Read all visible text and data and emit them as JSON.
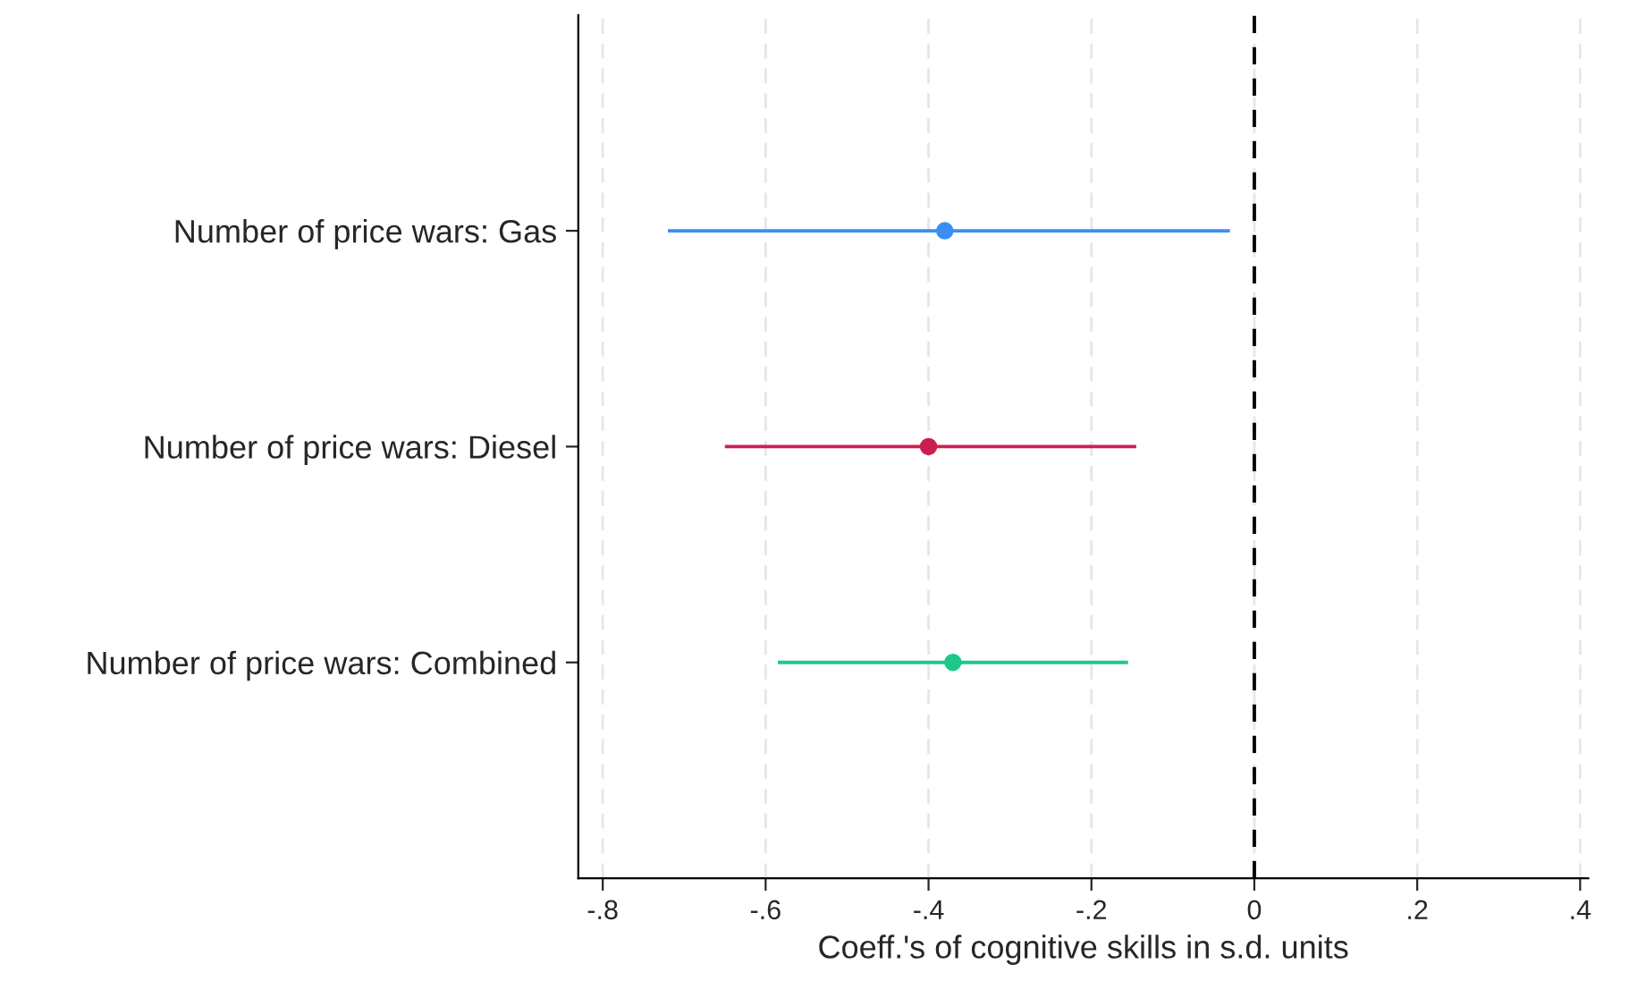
{
  "chart_data": {
    "type": "scatter",
    "orientation": "horizontal",
    "xlabel": "Coeff.'s of cognitive skills in s.d. units",
    "categories": [
      "Number of price wars: Gas",
      "Number of price wars: Diesel",
      "Number of price wars: Combined"
    ],
    "values": [
      -0.38,
      -0.4,
      -0.37
    ],
    "errors": [
      [
        -0.72,
        -0.03
      ],
      [
        -0.65,
        -0.145
      ],
      [
        -0.585,
        -0.155
      ]
    ],
    "colors": [
      "#3a8ef6",
      "#cc1f50",
      "#1ec88b"
    ],
    "marker": "circle",
    "xlim": [
      -0.83,
      0.41
    ],
    "xticks": [
      {
        "value": -0.8,
        "label": "-.8"
      },
      {
        "value": -0.6,
        "label": "-.6"
      },
      {
        "value": -0.4,
        "label": "-.4"
      },
      {
        "value": -0.2,
        "label": "-.2"
      },
      0,
      {
        "value": 0.2,
        "label": ".2"
      },
      {
        "value": 0.4,
        "label": ".4"
      }
    ],
    "grid": "x",
    "ref_lines": [
      {
        "axis": "x",
        "value": 0,
        "color": "#000000",
        "line_style": "dashed"
      }
    ]
  }
}
